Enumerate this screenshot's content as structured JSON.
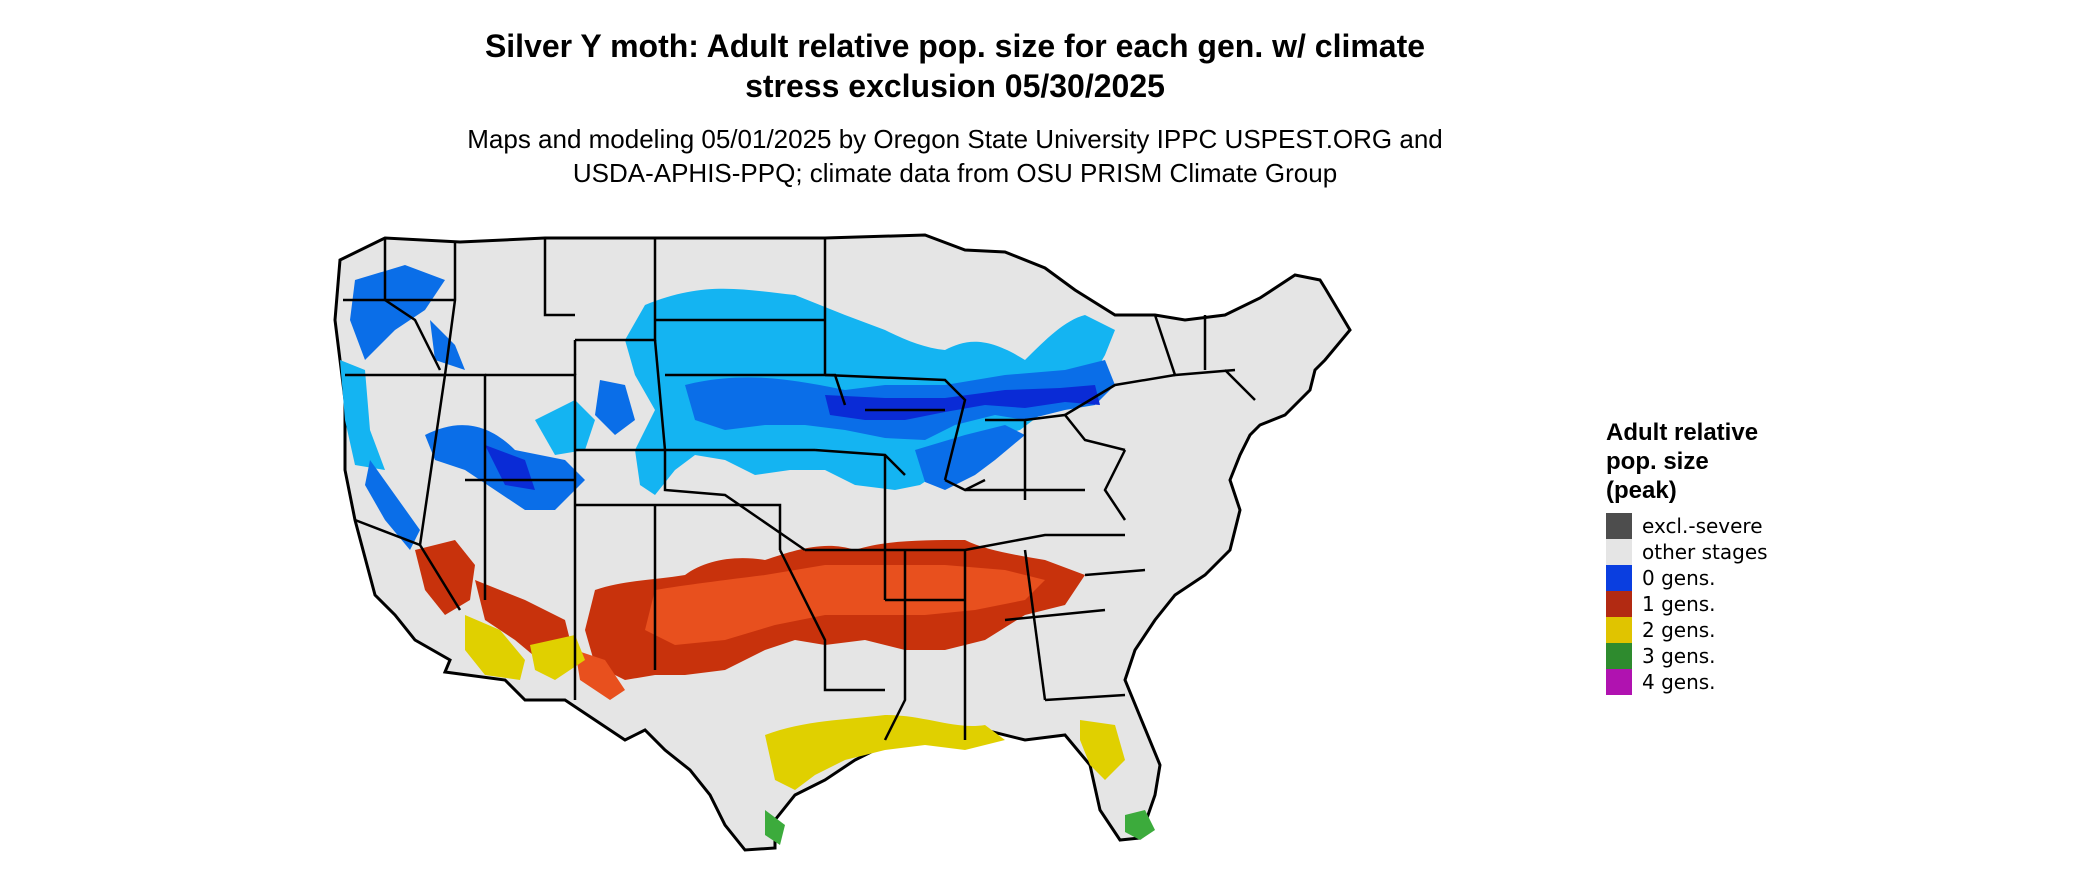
{
  "title_lines": [
    "Silver Y moth: Adult relative pop. size for each gen. w/ climate",
    "stress exclusion 05/30/2025"
  ],
  "subtitle_lines": [
    "Maps and modeling 05/01/2025 by Oregon State University IPPC USPEST.ORG and",
    "USDA-APHIS-PPQ; climate data from OSU PRISM Climate Group"
  ],
  "legend": {
    "title_lines": [
      "Adult relative",
      "pop. size",
      "(peak)"
    ],
    "items": [
      {
        "label": "excl.-severe",
        "color": "#4d4d4d"
      },
      {
        "label": "other stages",
        "color": "#e5e5e5"
      },
      {
        "label": "0 gens.",
        "color": "#0a3ee0"
      },
      {
        "label": "1 gens.",
        "color": "#b22a12"
      },
      {
        "label": "2 gens.",
        "color": "#e0c400"
      },
      {
        "label": "3 gens.",
        "color": "#2e8b2e"
      },
      {
        "label": "4 gens.",
        "color": "#b012b0"
      }
    ]
  },
  "map_colors": {
    "land": "#e5e5e5",
    "border": "#000000",
    "gen0_dark": "#0a2bd6",
    "gen0_mid": "#0a6ee8",
    "gen0_light": "#14b4f2",
    "gen1": "#c8320c",
    "gen1_light": "#e8501e",
    "gen2": "#e0d000",
    "gen3": "#3cab3c"
  }
}
